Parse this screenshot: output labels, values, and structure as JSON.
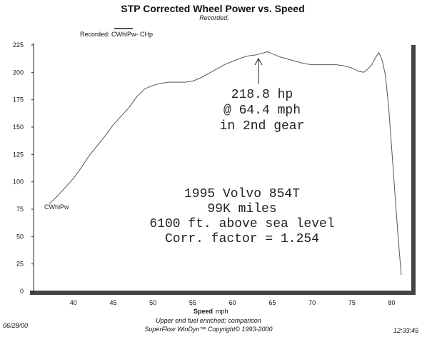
{
  "header": {
    "title": "STP Corrected Wheel Power vs. Speed",
    "subtitle": "Recorded,"
  },
  "legend": {
    "label": "Recorded: CWhlPw- CHp",
    "swatch_color": "#555555"
  },
  "annotation": {
    "peak_lines": [
      "218.8 hp",
      "@ 64.4 mph",
      "in 2nd gear"
    ],
    "info_lines": [
      "1995 Volvo 854T",
      "99K miles",
      "6100 ft. above sea level",
      "Corr. factor = 1.254"
    ]
  },
  "footer": {
    "date": "06/28/00",
    "note": "Upper end fuel enriched; comparison",
    "copyright": "SuperFlow WinDyn™  Copyright© 1993-2000",
    "time": "12:33:45"
  },
  "chart_data": {
    "type": "line",
    "title": "STP Corrected Wheel Power vs. Speed",
    "xlabel": "Speed",
    "xunit": "mph",
    "ylabel": "",
    "xlim": [
      35,
      83
    ],
    "ylim": [
      0,
      225
    ],
    "xticks": [
      40,
      45,
      50,
      55,
      60,
      65,
      70,
      75,
      80
    ],
    "yticks": [
      0,
      25,
      50,
      75,
      100,
      125,
      150,
      175,
      200,
      225
    ],
    "grid": false,
    "series": [
      {
        "name": "CWhlPw",
        "color": "#555555",
        "x": [
          37.0,
          38.0,
          39.0,
          40.0,
          41.0,
          42.0,
          43.0,
          44.0,
          45.0,
          46.0,
          47.0,
          48.0,
          49.0,
          50.0,
          51.0,
          52.0,
          53.0,
          54.0,
          55.0,
          56.0,
          57.0,
          58.0,
          59.0,
          60.0,
          61.0,
          62.0,
          63.0,
          64.4,
          65.0,
          66.0,
          67.0,
          68.0,
          69.0,
          70.0,
          71.0,
          72.0,
          73.0,
          74.0,
          75.0,
          75.8,
          76.5,
          77.0,
          77.5,
          78.0,
          78.4,
          78.8,
          79.2,
          79.6,
          80.0,
          80.4,
          80.8,
          81.2
        ],
        "y": [
          80,
          87,
          95,
          103,
          113,
          124,
          133,
          142,
          152,
          160,
          168,
          178,
          185,
          188,
          190,
          191,
          191,
          191,
          192,
          195,
          199,
          203,
          207,
          210,
          213,
          215,
          216,
          218.8,
          217,
          214,
          212,
          210,
          208,
          207,
          207,
          207,
          207,
          206,
          204,
          201,
          200,
          203,
          207,
          214,
          218,
          211,
          198,
          170,
          130,
          90,
          50,
          15
        ]
      }
    ]
  }
}
